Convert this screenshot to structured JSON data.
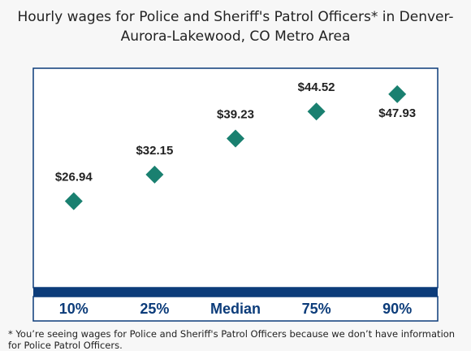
{
  "title": "Hourly wages for Police and Sheriff's Patrol Officers* in Denver-Aurora-Lakewood, CO Metro Area",
  "footnote": "* You’re seeing wages for Police and Sheriff's Patrol Officers because we don’t have information for Police Patrol Officers.",
  "colors": {
    "marker": "#1a8070",
    "frame": "#0c3c7a",
    "category_text": "#0c3c7a",
    "plot_bg": "#ffffff"
  },
  "chart_data": {
    "type": "scatter",
    "title": "Hourly wages for Police and Sheriff's Patrol Officers* in Denver-Aurora-Lakewood, CO Metro Area",
    "xlabel": "",
    "ylabel": "",
    "categories": [
      "10%",
      "25%",
      "Median",
      "75%",
      "90%"
    ],
    "values": [
      26.94,
      32.15,
      39.23,
      44.52,
      47.93
    ],
    "data_labels": [
      "$26.94",
      "$32.15",
      "$39.23",
      "$44.52",
      "$47.93"
    ],
    "label_position": [
      "above",
      "above",
      "above",
      "above",
      "below"
    ],
    "ylim": [
      10,
      53
    ],
    "marker": "diamond",
    "grid": false,
    "legend": "none"
  }
}
